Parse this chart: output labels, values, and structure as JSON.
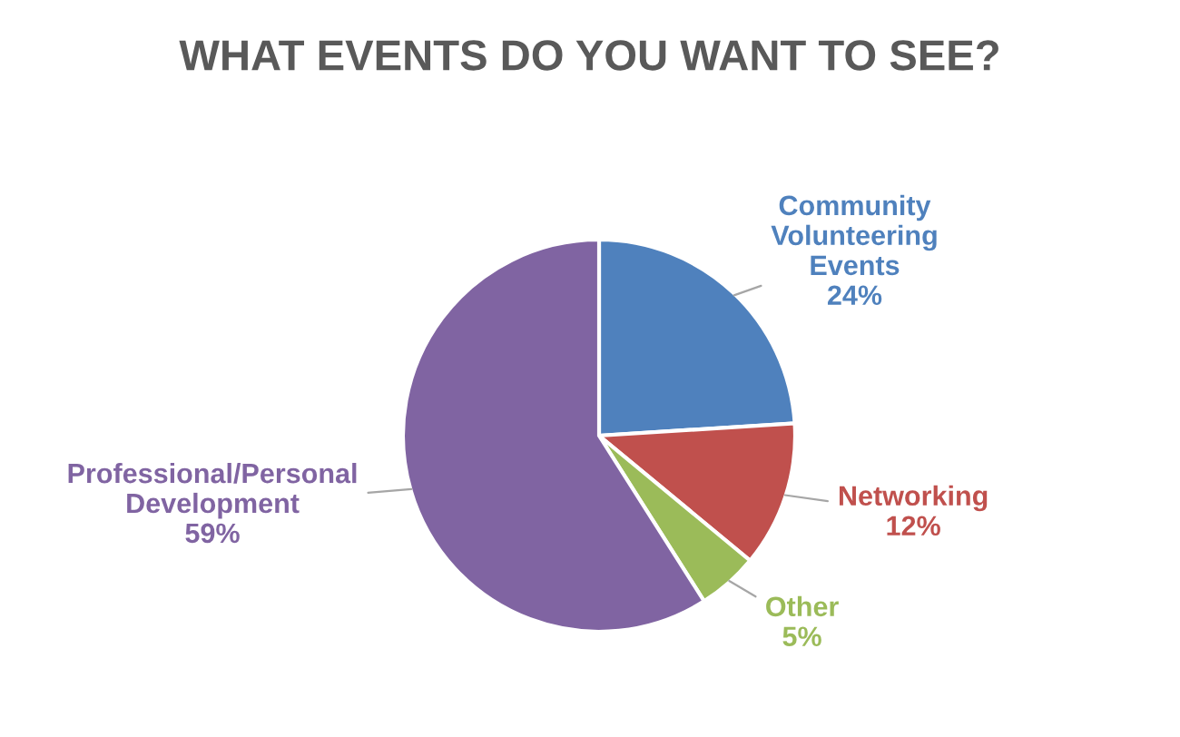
{
  "chart_data": {
    "type": "pie",
    "title": "WHAT EVENTS DO YOU WANT TO SEE?",
    "categories": [
      "Community\nVolunteering\nEvents",
      "Networking",
      "Other",
      "Professional/Personal\nDevelopment"
    ],
    "values": [
      24,
      12,
      5,
      59
    ],
    "value_labels": [
      "24%",
      "12%",
      "5%",
      "59%"
    ],
    "colors": [
      "#4f81bd",
      "#c0504d",
      "#9bbb59",
      "#8064a2"
    ]
  }
}
